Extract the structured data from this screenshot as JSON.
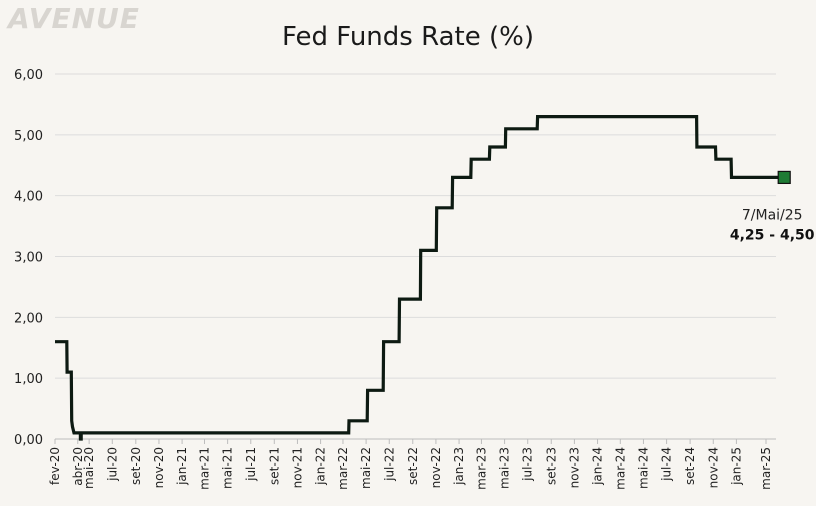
{
  "branding": {
    "logo_text": "AVENUE"
  },
  "chart_data": {
    "type": "line",
    "title": "Fed Funds Rate (%)",
    "xlabel": "",
    "ylabel": "",
    "ylim": [
      0,
      6
    ],
    "y_ticks": [
      "0,00",
      "1,00",
      "2,00",
      "3,00",
      "4,00",
      "5,00",
      "6,00"
    ],
    "x_tick_labels": [
      "fev-20",
      "abr-20",
      "mai-20",
      "jul-20",
      "set-20",
      "nov-20",
      "jan-21",
      "mar-21",
      "mai-21",
      "jul-21",
      "set-21",
      "nov-21",
      "jan-22",
      "mar-22",
      "mai-22",
      "jul-22",
      "set-22",
      "nov-22",
      "jan-23",
      "mar-23",
      "mai-23",
      "jul-23",
      "set-23",
      "nov-23",
      "jan-24",
      "mar-24",
      "mai-24",
      "jul-24",
      "set-24",
      "nov-24",
      "jan-25",
      "mar-25"
    ],
    "x_tick_dates": [
      "2020-02",
      "2020-04",
      "2020-05",
      "2020-07",
      "2020-09",
      "2020-11",
      "2021-01",
      "2021-03",
      "2021-05",
      "2021-07",
      "2021-09",
      "2021-11",
      "2022-01",
      "2022-03",
      "2022-05",
      "2022-07",
      "2022-09",
      "2022-11",
      "2023-01",
      "2023-03",
      "2023-05",
      "2023-07",
      "2023-09",
      "2023-11",
      "2024-01",
      "2024-03",
      "2024-05",
      "2024-07",
      "2024-09",
      "2024-11",
      "2025-01",
      "2025-03"
    ],
    "grid": true,
    "line_color": "#0d1a12",
    "marker_color": "#1e7b34",
    "points": [
      {
        "x": "2020-02-01",
        "y": 1.6
      },
      {
        "x": "2020-03-03",
        "y": 1.6
      },
      {
        "x": "2020-03-04",
        "y": 1.1
      },
      {
        "x": "2020-03-15",
        "y": 1.1
      },
      {
        "x": "2020-03-16",
        "y": 0.3
      },
      {
        "x": "2020-03-18",
        "y": 0.2
      },
      {
        "x": "2020-03-22",
        "y": 0.1
      },
      {
        "x": "2020-04-08",
        "y": 0.1
      },
      {
        "x": "2020-04-08",
        "y": 0.0
      },
      {
        "x": "2020-04-10",
        "y": 0.0
      },
      {
        "x": "2020-04-10",
        "y": 0.1
      },
      {
        "x": "2022-03-16",
        "y": 0.1
      },
      {
        "x": "2022-03-17",
        "y": 0.3
      },
      {
        "x": "2022-05-04",
        "y": 0.3
      },
      {
        "x": "2022-05-05",
        "y": 0.8
      },
      {
        "x": "2022-06-15",
        "y": 0.8
      },
      {
        "x": "2022-06-16",
        "y": 1.6
      },
      {
        "x": "2022-07-27",
        "y": 1.6
      },
      {
        "x": "2022-07-28",
        "y": 2.3
      },
      {
        "x": "2022-09-21",
        "y": 2.3
      },
      {
        "x": "2022-09-22",
        "y": 3.1
      },
      {
        "x": "2022-11-02",
        "y": 3.1
      },
      {
        "x": "2022-11-03",
        "y": 3.8
      },
      {
        "x": "2022-12-14",
        "y": 3.8
      },
      {
        "x": "2022-12-15",
        "y": 4.3
      },
      {
        "x": "2023-02-01",
        "y": 4.3
      },
      {
        "x": "2023-02-02",
        "y": 4.6
      },
      {
        "x": "2023-03-22",
        "y": 4.6
      },
      {
        "x": "2023-03-23",
        "y": 4.8
      },
      {
        "x": "2023-05-03",
        "y": 4.8
      },
      {
        "x": "2023-05-04",
        "y": 5.1
      },
      {
        "x": "2023-07-26",
        "y": 5.1
      },
      {
        "x": "2023-07-27",
        "y": 5.3
      },
      {
        "x": "2024-09-18",
        "y": 5.3
      },
      {
        "x": "2024-09-19",
        "y": 4.8
      },
      {
        "x": "2024-11-07",
        "y": 4.8
      },
      {
        "x": "2024-11-08",
        "y": 4.6
      },
      {
        "x": "2024-12-18",
        "y": 4.6
      },
      {
        "x": "2024-12-19",
        "y": 4.3
      },
      {
        "x": "2025-05-07",
        "y": 4.3
      }
    ],
    "annotation": {
      "x": "2025-05-07",
      "y": 4.3,
      "date_label": "7/Mai/25",
      "value_label": "4,25 - 4,50"
    }
  }
}
